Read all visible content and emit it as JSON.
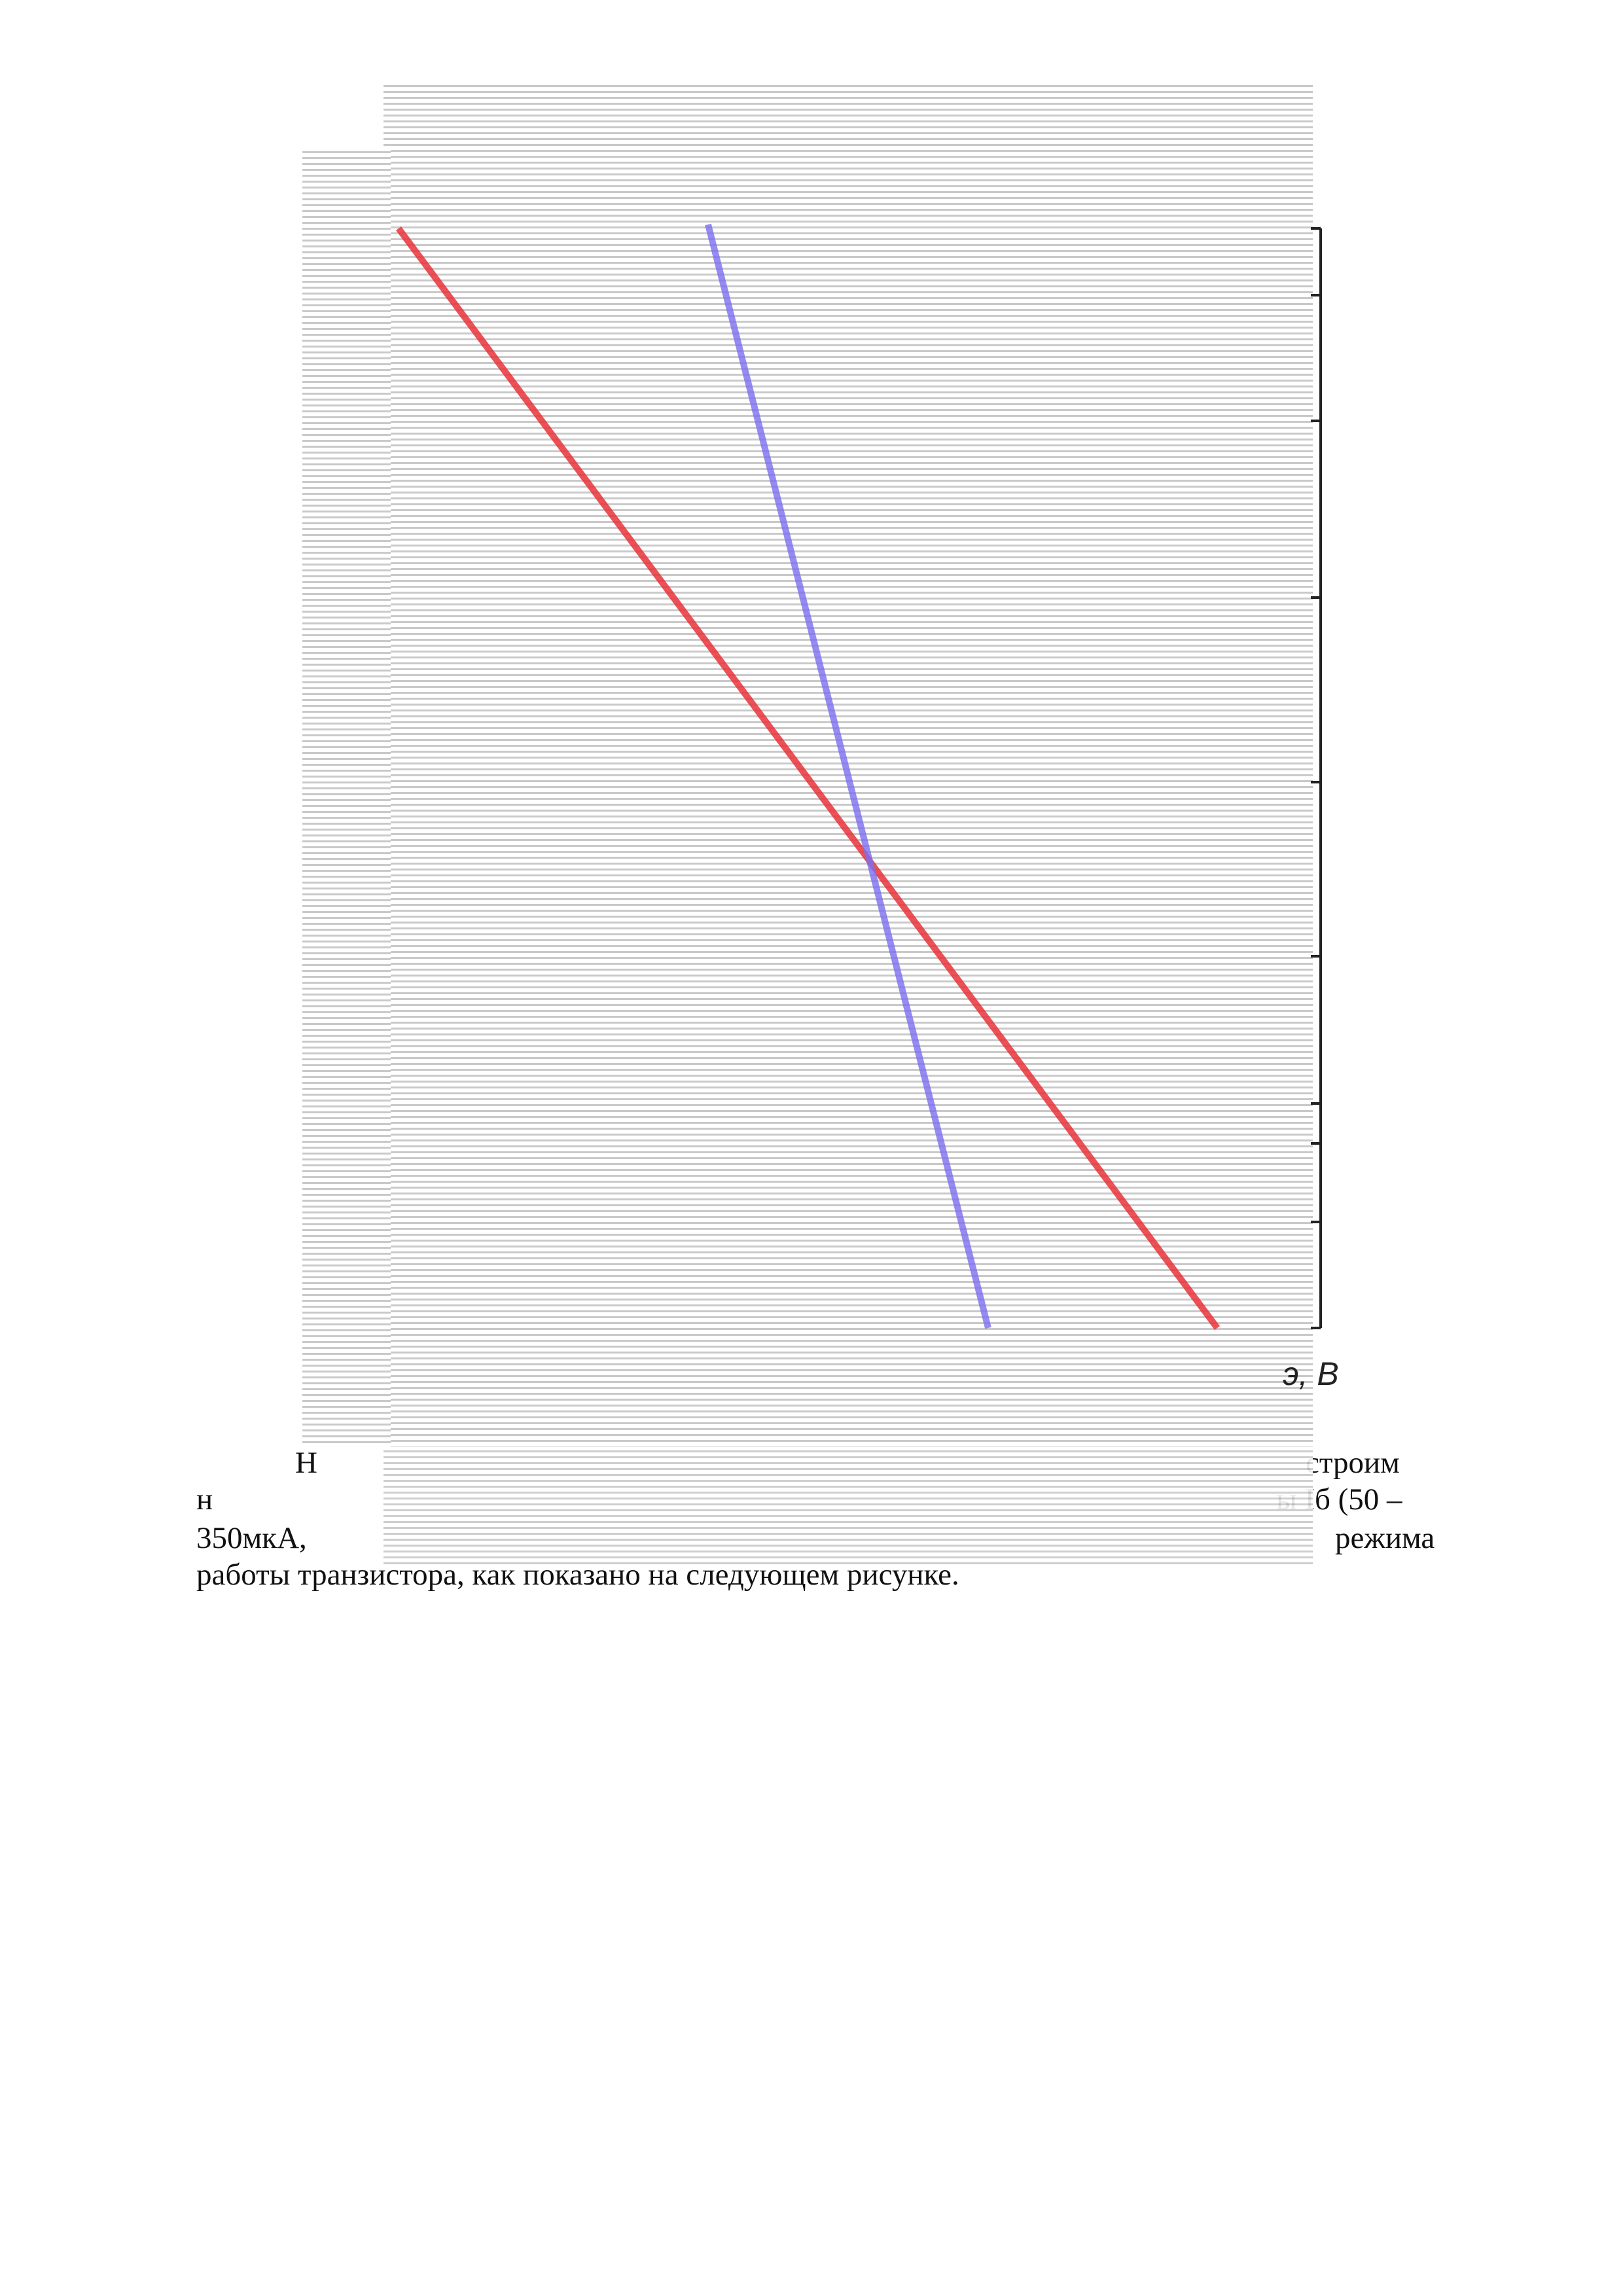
{
  "figure": {
    "axis_label": "э, В"
  },
  "paragraph": {
    "lines": [
      [
        "Н",
        "строим"
      ],
      [
        "н",
        "ы Iб (50 –"
      ],
      [
        "350мкА,",
        "режима"
      ],
      [
        "работы транзистора, как показано на следующем рисунке."
      ]
    ]
  }
}
